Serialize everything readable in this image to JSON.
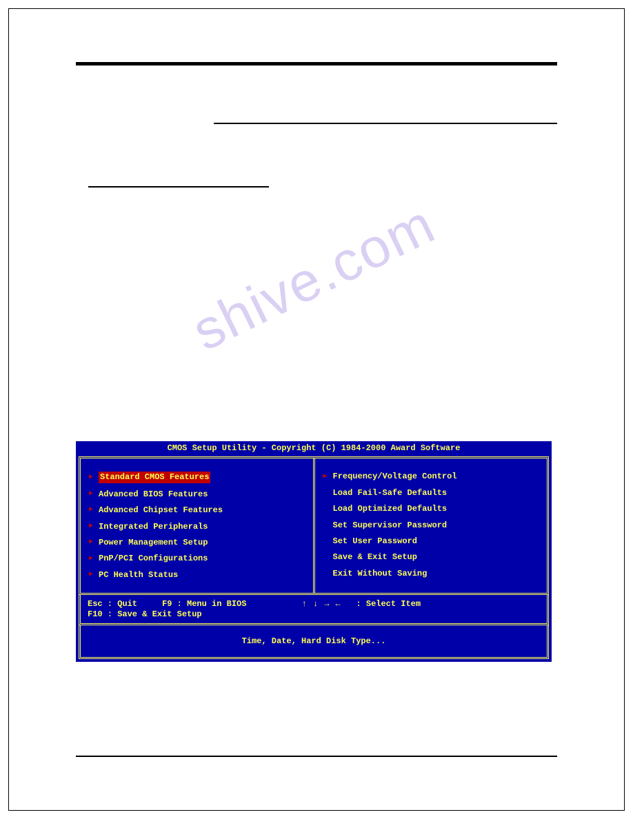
{
  "watermark": "shive.com",
  "bios": {
    "title": "CMOS Setup Utility - Copyright (C) 1984-2000 Award Software",
    "background_color": "#0000a8",
    "text_color": "#ffff55",
    "highlight_bg": "#c00000",
    "triangle_color": "#c00000",
    "columns": {
      "left": [
        {
          "label": "Standard CMOS Features",
          "triangle": true,
          "selected": true
        },
        {
          "label": "Advanced BIOS Features",
          "triangle": true,
          "selected": false
        },
        {
          "label": "Advanced Chipset Features",
          "triangle": true,
          "selected": false
        },
        {
          "label": "Integrated Peripherals",
          "triangle": true,
          "selected": false
        },
        {
          "label": "Power Management Setup",
          "triangle": true,
          "selected": false
        },
        {
          "label": "PnP/PCI Configurations",
          "triangle": true,
          "selected": false
        },
        {
          "label": "PC Health Status",
          "triangle": true,
          "selected": false
        }
      ],
      "right": [
        {
          "label": "Frequency/Voltage Control",
          "triangle": true,
          "selected": false
        },
        {
          "label": "Load Fail-Safe Defaults",
          "triangle": false,
          "selected": false
        },
        {
          "label": "Load Optimized Defaults",
          "triangle": false,
          "selected": false
        },
        {
          "label": "Set Supervisor Password",
          "triangle": false,
          "selected": false
        },
        {
          "label": "Set User Password",
          "triangle": false,
          "selected": false
        },
        {
          "label": "Save & Exit Setup",
          "triangle": false,
          "selected": false
        },
        {
          "label": "Exit Without Saving",
          "triangle": false,
          "selected": false
        }
      ]
    },
    "footer": {
      "left_line1": "Esc : Quit     F9 : Menu in BIOS",
      "left_line2": "F10 : Save & Exit Setup",
      "right_arrows": "↑ ↓ → ←",
      "right_label": "   : Select Item"
    },
    "info_line": "Time, Date, Hard Disk Type..."
  }
}
